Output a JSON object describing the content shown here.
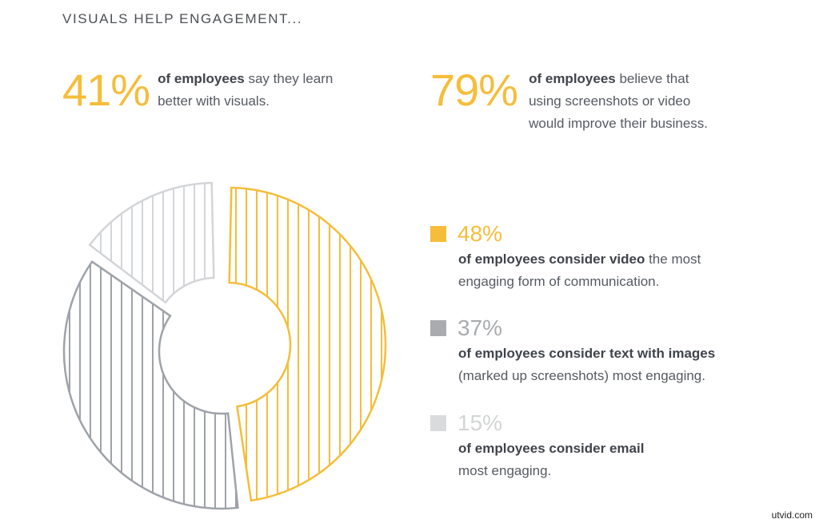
{
  "title": "VISUALS HELP ENGAGEMENT...",
  "stats": [
    {
      "value": "41%",
      "bold": "of employees",
      "rest_line1": " say they learn",
      "rest_line2": "better with visuals."
    },
    {
      "value": "79%",
      "bold": "of employees",
      "rest_line1": " believe that",
      "rest_line2": "using screenshots or video",
      "rest_line3": "would improve their business."
    }
  ],
  "legend": [
    {
      "pct": "48%",
      "color": "#f5bd3a",
      "bold": "of employees consider video",
      "rest_line1": " the most",
      "rest_line2": "engaging form of communication."
    },
    {
      "pct": "37%",
      "color": "#a9abae",
      "bold": "of employees consider text with images",
      "rest_line1": "",
      "rest_line2": "(marked up screenshots) most engaging."
    },
    {
      "pct": "15%",
      "color": "#dadbdd",
      "bold": "of employees consider email",
      "rest_line1": "",
      "rest_line2": "most engaging."
    }
  ],
  "watermark": "utvid.com",
  "chart_data": {
    "type": "pie",
    "variant": "donut",
    "title": "",
    "categories": [
      "Video",
      "Text with images (marked up screenshots)",
      "Email"
    ],
    "values": [
      48,
      37,
      15
    ],
    "colors": [
      "#f5bd3a",
      "#9ea3a9",
      "#d3d5d8"
    ],
    "unit": "%",
    "legend_position": "right"
  }
}
